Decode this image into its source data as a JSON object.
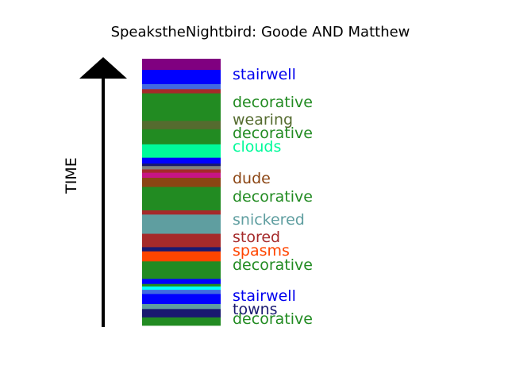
{
  "title": "SpeakstheNightbird: Goode AND Matthew",
  "chart_data": {
    "type": "timeline-strip",
    "title": "SpeakstheNightbird: Goode AND Matthew",
    "axis_label": "TIME",
    "axis_direction": "up",
    "segments_bottom_to_top": [
      {
        "color": "#228b22",
        "weight": 10
      },
      {
        "color": "#191970",
        "weight": 10
      },
      {
        "color": "#5f9ea0",
        "weight": 6
      },
      {
        "color": "#0000ff",
        "weight": 12
      },
      {
        "color": "#4169e1",
        "weight": 5
      },
      {
        "color": "#00ffff",
        "weight": 4
      },
      {
        "color": "#228b22",
        "weight": 3
      },
      {
        "color": "#0000ff",
        "weight": 6
      },
      {
        "color": "#228b22",
        "weight": 21
      },
      {
        "color": "#ff4500",
        "weight": 12
      },
      {
        "color": "#191970",
        "weight": 5
      },
      {
        "color": "#a52a2a",
        "weight": 16
      },
      {
        "color": "#5f9ea0",
        "weight": 23
      },
      {
        "color": "#a52a2a",
        "weight": 5
      },
      {
        "color": "#228b22",
        "weight": 28
      },
      {
        "color": "#8b4513",
        "weight": 11
      },
      {
        "color": "#c71585",
        "weight": 6
      },
      {
        "color": "#a52a2a",
        "weight": 4
      },
      {
        "color": "#808080",
        "weight": 4
      },
      {
        "color": "#191970",
        "weight": 3
      },
      {
        "color": "#0000ff",
        "weight": 7
      },
      {
        "color": "#00fa9a",
        "weight": 16
      },
      {
        "color": "#228b22",
        "weight": 18
      },
      {
        "color": "#556b2f",
        "weight": 10
      },
      {
        "color": "#228b22",
        "weight": 33
      },
      {
        "color": "#a52a2a",
        "weight": 5
      },
      {
        "color": "#4169e1",
        "weight": 6
      },
      {
        "color": "#0000ff",
        "weight": 17
      },
      {
        "color": "#800080",
        "weight": 13
      }
    ],
    "labels_top_to_bottom": [
      {
        "text": "stairwell",
        "color": "#0000ee"
      },
      {
        "text": "decorative",
        "color": "#228b22"
      },
      {
        "text": "wearing",
        "color": "#556b2f"
      },
      {
        "text": "decorative",
        "color": "#228b22"
      },
      {
        "text": "clouds",
        "color": "#00fa9a"
      },
      {
        "text": "dude",
        "color": "#8b4513"
      },
      {
        "text": "decorative",
        "color": "#228b22"
      },
      {
        "text": "snickered",
        "color": "#5f9ea0"
      },
      {
        "text": "stored",
        "color": "#a52a2a"
      },
      {
        "text": "spasms",
        "color": "#ff4500"
      },
      {
        "text": "decorative",
        "color": "#228b22"
      },
      {
        "text": "stairwell",
        "color": "#0000ee"
      },
      {
        "text": "towns",
        "color": "#191970"
      },
      {
        "text": "decorative",
        "color": "#228b22"
      }
    ]
  }
}
